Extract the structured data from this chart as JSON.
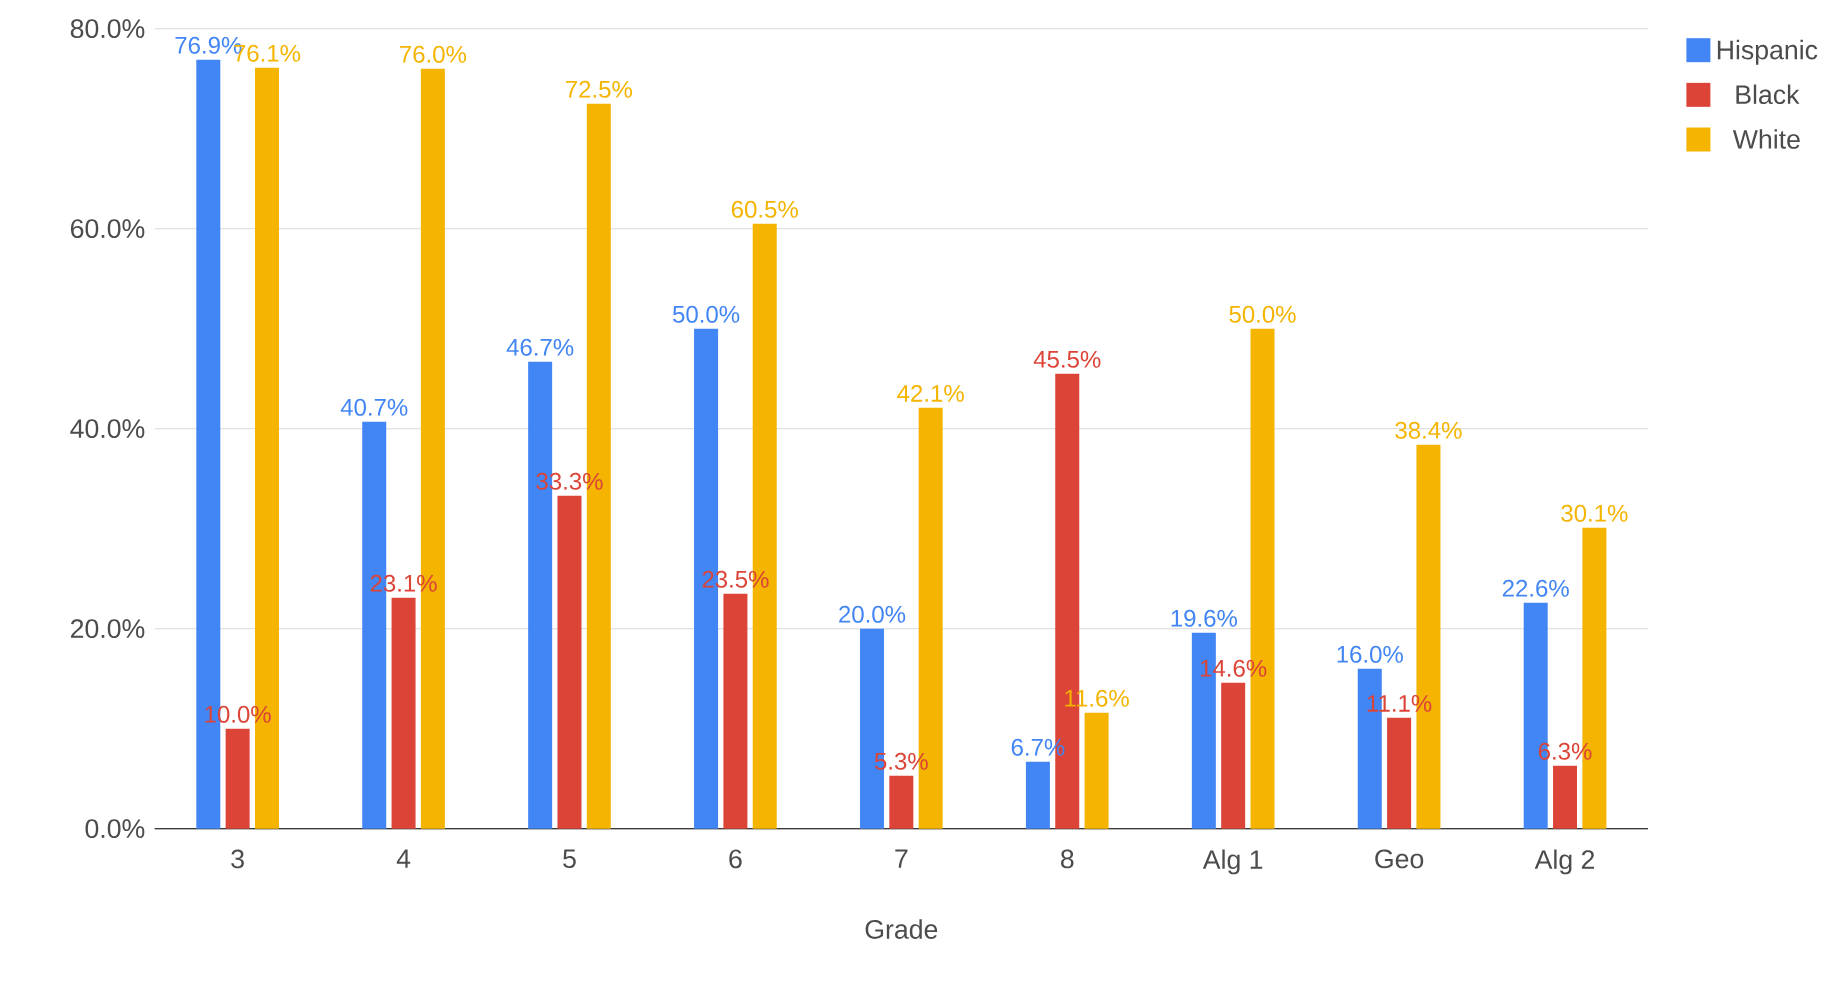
{
  "chart_data": {
    "type": "bar",
    "xlabel": "Grade",
    "categories": [
      "3",
      "4",
      "5",
      "6",
      "7",
      "8",
      "Alg 1",
      "Geo",
      "Alg 2"
    ],
    "series": [
      {
        "name": "Hispanic",
        "color": "#4285f4",
        "values": [
          76.9,
          40.7,
          46.7,
          50.0,
          20.0,
          6.7,
          19.6,
          16.0,
          22.6
        ],
        "value_labels": [
          "76.9%",
          "40.7%",
          "46.7%",
          "50.0%",
          "20.0%",
          "6.7%",
          "19.6%",
          "16.0%",
          "22.6%"
        ]
      },
      {
        "name": "Black",
        "color": "#db4437",
        "values": [
          10.0,
          23.1,
          33.3,
          23.5,
          5.3,
          45.5,
          14.6,
          11.1,
          6.3
        ],
        "value_labels": [
          "10.0%",
          "23.1%",
          "33.3%",
          "23.5%",
          "5.3%",
          "45.5%",
          "14.6%",
          "11.1%",
          "6.3%"
        ]
      },
      {
        "name": "White",
        "color": "#f4b400",
        "values": [
          76.1,
          76.0,
          72.5,
          60.5,
          42.1,
          11.6,
          50.0,
          38.4,
          30.1
        ],
        "value_labels": [
          "76.1%",
          "76.0%",
          "72.5%",
          "60.5%",
          "42.1%",
          "11.6%",
          "50.0%",
          "38.4%",
          "30.1%"
        ]
      }
    ],
    "ylim": [
      0,
      80
    ],
    "yticks": [
      {
        "value": 0,
        "label": "0.0%"
      },
      {
        "value": 20,
        "label": "20.0%"
      },
      {
        "value": 40,
        "label": "40.0%"
      },
      {
        "value": 60,
        "label": "60.0%"
      },
      {
        "value": 80,
        "label": "80.0%"
      }
    ],
    "grid": "y",
    "legend": "top right"
  }
}
